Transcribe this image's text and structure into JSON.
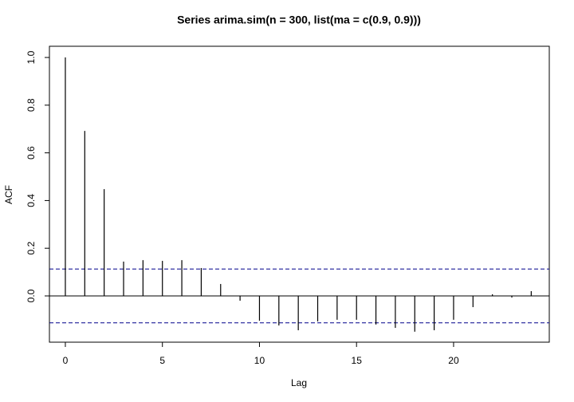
{
  "chart_data": {
    "type": "stem",
    "title": "Series  arima.sim(n = 300, list(ma = c(0.9, 0.9)))",
    "x_label": "Lag",
    "y_label": "ACF",
    "x": [
      0,
      1,
      2,
      3,
      4,
      5,
      6,
      7,
      8,
      9,
      10,
      11,
      12,
      13,
      14,
      15,
      16,
      17,
      18,
      19,
      20,
      21,
      22,
      23,
      24
    ],
    "values": [
      1.0,
      0.692,
      0.448,
      0.144,
      0.15,
      0.147,
      0.15,
      0.117,
      0.05,
      -0.02,
      -0.104,
      -0.124,
      -0.144,
      -0.107,
      -0.1,
      -0.1,
      -0.12,
      -0.134,
      -0.15,
      -0.144,
      -0.1,
      -0.047,
      0.007,
      -0.007,
      0.02
    ],
    "color": "#000000",
    "ci_lines": [
      0.113,
      -0.113
    ],
    "ci_color": "#00008b",
    "xlim": [
      -0.82,
      24.93
    ],
    "ylim": [
      -0.194,
      1.047
    ],
    "xticks": [
      0,
      5,
      10,
      15,
      20
    ],
    "yticks": [
      {
        "value": 0,
        "label": "0.0"
      },
      0.2,
      0.4,
      0.6,
      0.8,
      {
        "value": 1,
        "label": "1.0"
      }
    ]
  }
}
